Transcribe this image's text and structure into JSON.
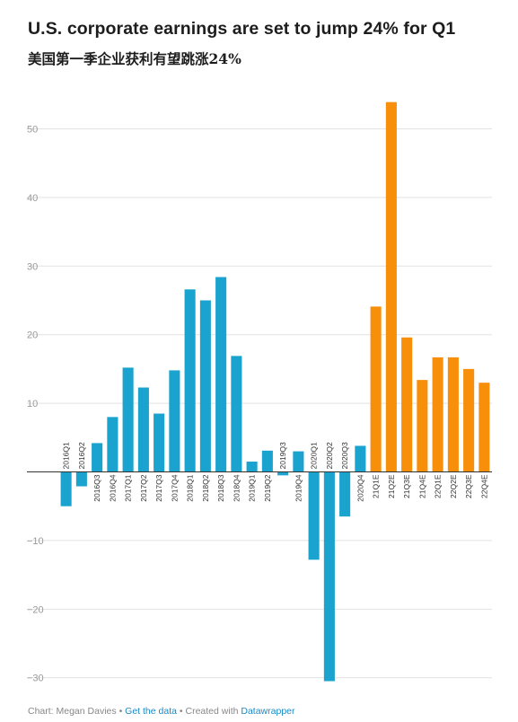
{
  "header": {
    "title": "U.S. corporate earnings are set to jump 24% for Q1",
    "subtitle": "美国第一季企业获利有望跳涨24%"
  },
  "footer": {
    "credit": "Chart: Megan Davies",
    "separator": "•",
    "get_data": "Get the data",
    "created_with": "Created with",
    "tool": "Datawrapper"
  },
  "colors": {
    "actual": "#1ba3cf",
    "estimate": "#f78f0a",
    "grid": "#e2e2e2",
    "zero_line": "#333333"
  },
  "chart_data": {
    "type": "bar",
    "categories": [
      "2016Q1",
      "2016Q2",
      "2016Q3",
      "2016Q4",
      "2017Q1",
      "2017Q2",
      "2017Q3",
      "2017Q4",
      "2018Q1",
      "2018Q2",
      "2018Q3",
      "2018Q4",
      "2019Q1",
      "2019Q2",
      "2019Q3",
      "2019Q4",
      "2020Q1",
      "2020Q2",
      "2020Q3",
      "2020Q4",
      "21Q1E",
      "21Q2E",
      "21Q3E",
      "21Q4E",
      "22Q1E",
      "22Q2E",
      "22Q3E",
      "22Q4E"
    ],
    "values": [
      -5.0,
      -2.1,
      4.2,
      8.0,
      15.2,
      12.3,
      8.5,
      14.8,
      26.6,
      25.0,
      28.4,
      16.9,
      1.5,
      3.1,
      -0.5,
      3.0,
      -12.8,
      -30.5,
      -6.5,
      3.8,
      24.1,
      53.9,
      19.6,
      13.4,
      16.7,
      16.7,
      15.0,
      13.0
    ],
    "estimate": [
      false,
      false,
      false,
      false,
      false,
      false,
      false,
      false,
      false,
      false,
      false,
      false,
      false,
      false,
      false,
      false,
      false,
      false,
      false,
      false,
      true,
      true,
      true,
      true,
      true,
      true,
      true,
      true
    ],
    "title": "U.S. corporate earnings are set to jump 24% for Q1",
    "xlabel": "",
    "ylabel": "",
    "ylim": [
      -32,
      57
    ],
    "yticks": [
      -30,
      -20,
      -10,
      0,
      10,
      20,
      30,
      40,
      50
    ],
    "ytick_labels": [
      "−30",
      "−20",
      "−10",
      "",
      "10",
      "20",
      "30",
      "40",
      "50"
    ],
    "grid": true,
    "legend": "none"
  }
}
